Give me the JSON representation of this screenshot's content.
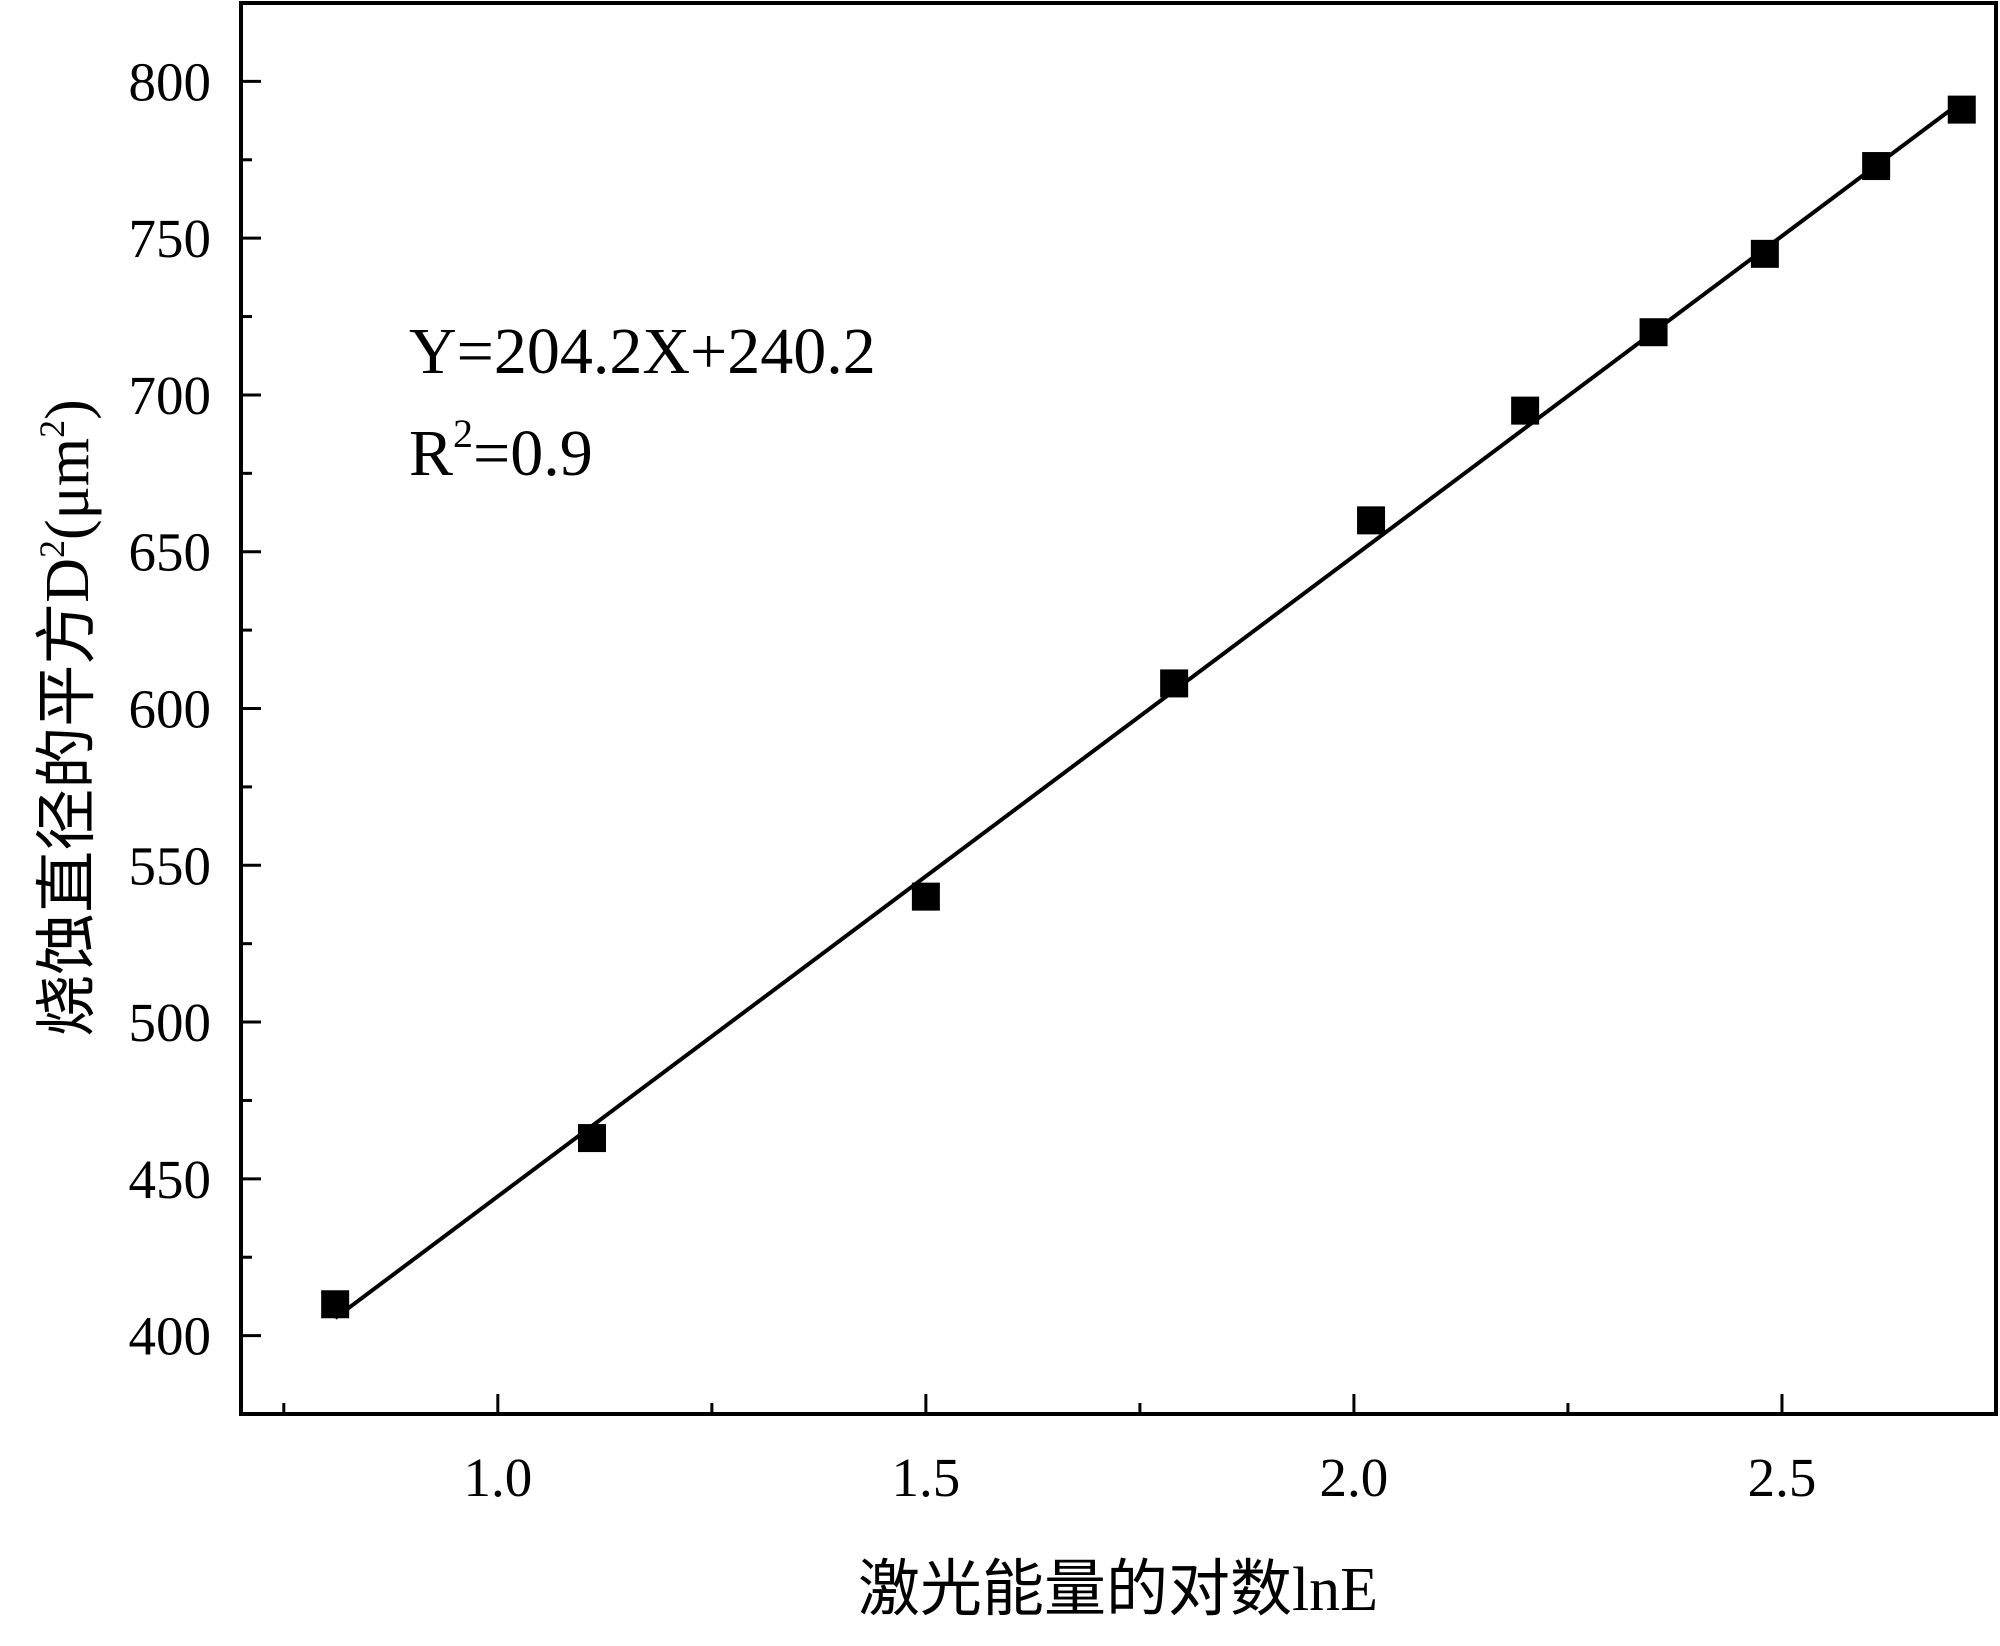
{
  "chart_data": {
    "type": "scatter",
    "xlabel": "激光能量的对数lnE",
    "ylabel_main": "烧蚀直径的平方D",
    "ylabel_sup": "2",
    "ylabel_unit_open": "(μm",
    "ylabel_unit_sup": "2",
    "ylabel_unit_close": ")",
    "xlim": [
      0.7,
      2.75
    ],
    "ylim": [
      375,
      825
    ],
    "x_ticks": [
      {
        "value": 1.0,
        "label": "1.0"
      },
      {
        "value": 1.5,
        "label": "1.5"
      },
      {
        "value": 2.0,
        "label": "2.0"
      },
      {
        "value": 2.5,
        "label": "2.5"
      }
    ],
    "x_minor_ticks": [
      0.75,
      1.25,
      1.75,
      2.25
    ],
    "y_ticks": [
      {
        "value": 400,
        "label": "400"
      },
      {
        "value": 450,
        "label": "450"
      },
      {
        "value": 500,
        "label": "500"
      },
      {
        "value": 550,
        "label": "550"
      },
      {
        "value": 600,
        "label": "600"
      },
      {
        "value": 650,
        "label": "650"
      },
      {
        "value": 700,
        "label": "700"
      },
      {
        "value": 750,
        "label": "750"
      },
      {
        "value": 800,
        "label": "800"
      }
    ],
    "y_minor_ticks": [
      425,
      475,
      525,
      575,
      625,
      675,
      725,
      775
    ],
    "series": [
      {
        "marker": "square",
        "color": "#000000",
        "x": [
          0.81,
          1.11,
          1.5,
          1.79,
          2.02,
          2.2,
          2.35,
          2.48,
          2.61,
          2.71
        ],
        "y": [
          410,
          463,
          540,
          608,
          660,
          695,
          720,
          745,
          773,
          791
        ]
      }
    ],
    "fit_line": {
      "slope": 204.2,
      "intercept": 240.2,
      "x_range": [
        0.81,
        2.71
      ],
      "color": "#000000"
    },
    "annotation": {
      "equation": "Y=204.2X+240.2",
      "r2_prefix": "R",
      "r2_sup": "2",
      "r2_suffix": "=0.9"
    },
    "grid": false
  }
}
